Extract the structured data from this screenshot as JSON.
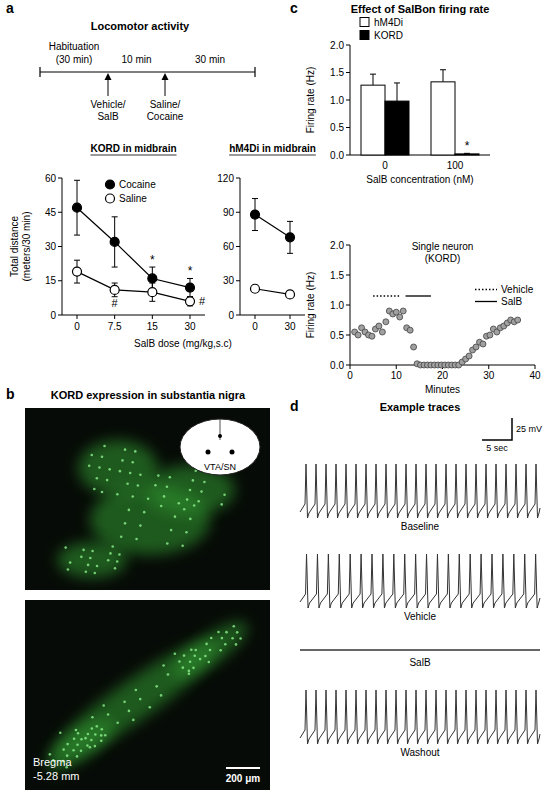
{
  "figure": {
    "panel_letters": [
      "a",
      "b",
      "c",
      "d"
    ],
    "locomotor": {
      "title": "Locomotor activity",
      "habituation": [
        "Habituation",
        "(30 min)"
      ],
      "intervals": [
        "10 min",
        "30 min"
      ],
      "injections": [
        [
          "Vehicle/",
          "SalB"
        ],
        [
          "Saline/",
          "Cocaine"
        ]
      ],
      "x_label": "SalB dose (mg/kg,s.c)"
    },
    "expression": {
      "title": "KORD expression in substantia nigra",
      "inset_label": "VTA/SN",
      "coordinates": [
        "Bregma",
        "-5.28 mm"
      ],
      "scale_bar": "200 μm"
    },
    "traces": {
      "title": "Example traces",
      "scale_bars": [
        "25 mV",
        "5 sec"
      ],
      "items": [
        {
          "label": "Baseline",
          "spike_count": 24
        },
        {
          "label": "Vehicle",
          "spike_count": 22
        },
        {
          "label": "SalB",
          "spike_count": 0
        },
        {
          "label": "Washout",
          "spike_count": 24
        }
      ]
    }
  },
  "chart_data": [
    {
      "type": "line",
      "title": "KORD in midbrain",
      "y_label": [
        "Total distance",
        "(meters/30 min)"
      ],
      "categories": [
        "0",
        "7.5",
        "15",
        "30"
      ],
      "series": [
        {
          "name": "Cocaine",
          "color": "#000000",
          "marker": "filled-circle",
          "values": [
            47,
            32,
            16,
            12
          ],
          "errors": [
            12,
            11,
            5,
            4
          ]
        },
        {
          "name": "Saline",
          "color": "#000000",
          "marker": "open-circle",
          "values": [
            19,
            11,
            10,
            6
          ],
          "errors": [
            5,
            3,
            4,
            2
          ]
        }
      ],
      "ylim": [
        0,
        60
      ],
      "yticks": [
        0,
        15,
        30,
        45,
        60
      ],
      "legend": "top-right",
      "annotations": [
        {
          "text": "*",
          "series": 0,
          "index": 2
        },
        {
          "text": "*",
          "series": 0,
          "index": 3
        },
        {
          "text": "#",
          "series": 1,
          "index": 1
        },
        {
          "text": "#",
          "series": 1,
          "index": 3
        }
      ]
    },
    {
      "type": "line",
      "title": "hM4Di in midbrain",
      "categories": [
        "0",
        "30"
      ],
      "series": [
        {
          "name": "Cocaine",
          "color": "#000000",
          "marker": "filled-circle",
          "values": [
            88,
            68
          ],
          "errors": [
            14,
            14
          ]
        },
        {
          "name": "Saline",
          "color": "#000000",
          "marker": "open-circle",
          "values": [
            23,
            18
          ],
          "errors": [
            3,
            2
          ]
        }
      ],
      "ylim": [
        0,
        120
      ],
      "yticks": [
        0,
        30,
        60,
        90,
        120
      ]
    },
    {
      "type": "bar",
      "title": "Effect of SalBon firing rate",
      "x_label": "SalB concentration (nM)",
      "y_label": "Firing rate (Hz)",
      "categories": [
        "0",
        "100"
      ],
      "series": [
        {
          "name": "hM4Di",
          "color": "#ffffff",
          "values": [
            1.27,
            1.33
          ],
          "errors": [
            0.2,
            0.22
          ]
        },
        {
          "name": "KORD",
          "color": "#000000",
          "values": [
            0.98,
            0.02
          ],
          "errors": [
            0.33,
            0.01
          ]
        }
      ],
      "ylim": [
        0,
        2
      ],
      "yticks": [
        {
          "value": 0,
          "label": "0.0"
        },
        0.5,
        {
          "value": 1,
          "label": "1.0"
        },
        1.5,
        {
          "value": 2,
          "label": "2.0"
        }
      ],
      "legend": "top-left",
      "annotations": [
        {
          "text": "*",
          "series": 1,
          "index": 1
        }
      ]
    },
    {
      "type": "scatter",
      "title": [
        "Single neuron",
        "(KORD)"
      ],
      "x_label": "Minutes",
      "y_label": "Firing rate (Hz)",
      "x": [
        1.0,
        1.75,
        2.5,
        3.25,
        4.0,
        4.75,
        5.5,
        6.25,
        7.0,
        7.75,
        8.5,
        9.25,
        10.0,
        10.75,
        11.5,
        12.25,
        13.0,
        13.75,
        14.5,
        15.25,
        16.0,
        16.75,
        17.5,
        18.25,
        19.0,
        19.75,
        20.5,
        21.25,
        22.0,
        22.75,
        23.5,
        24.25,
        25.0,
        25.75,
        26.5,
        27.25,
        28.0,
        28.75,
        29.5,
        30.25,
        31.0,
        31.75,
        32.5,
        33.25,
        34.0,
        34.75,
        35.5,
        36.25
      ],
      "values": [
        0.55,
        0.5,
        0.62,
        0.55,
        0.5,
        0.48,
        0.6,
        0.65,
        0.55,
        0.72,
        0.9,
        0.85,
        0.88,
        0.8,
        0.9,
        0.62,
        0.58,
        0.3,
        0.02,
        0,
        0,
        0,
        0,
        0,
        0,
        0,
        0,
        0,
        0,
        0,
        0,
        0.05,
        0.1,
        0.15,
        0.25,
        0.3,
        0.38,
        0.35,
        0.48,
        0.5,
        0.6,
        0.55,
        0.62,
        0.65,
        0.7,
        0.75,
        0.72,
        0.75
      ],
      "color": "#a0a0a0",
      "marker": "circle",
      "xlim": [
        0,
        40
      ],
      "xticks": [
        0,
        10,
        20,
        30,
        40
      ],
      "ylim": [
        0,
        2
      ],
      "yticks": [
        {
          "value": 0,
          "label": "0.0"
        },
        0.5,
        {
          "value": 1,
          "label": "1.0"
        },
        1.5,
        {
          "value": 2,
          "label": "2.0"
        }
      ],
      "periods": [
        {
          "name": "Vehicle",
          "start": 5,
          "end": 11,
          "level": 1.15,
          "line_style": "dotted"
        },
        {
          "name": "SalB",
          "start": 12,
          "end": 17.5,
          "level": 1.15,
          "line_style": "solid"
        }
      ],
      "legend": "right"
    }
  ]
}
